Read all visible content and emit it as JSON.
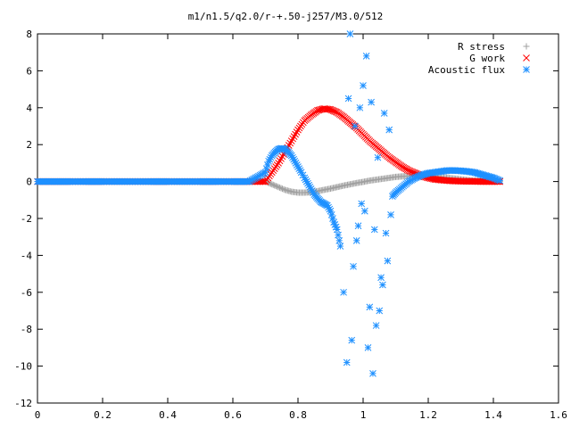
{
  "chart_data": {
    "type": "scatter",
    "title": "m1/n1.5/q2.0/r-+.50-j257/M3.0/512",
    "xlabel": "",
    "ylabel": "",
    "xlim": [
      0,
      1.6
    ],
    "ylim": [
      -12,
      8
    ],
    "xticks": [
      "0",
      "0.2",
      "0.4",
      "0.6",
      "0.8",
      "1",
      "1.2",
      "1.4",
      "1.6"
    ],
    "yticks": [
      "-12",
      "-10",
      "-8",
      "-6",
      "-4",
      "-2",
      "0",
      "2",
      "4",
      "6",
      "8"
    ],
    "grid": false,
    "legend_position": "top-right",
    "series": [
      {
        "name": "R stress",
        "marker": "plus",
        "color": "#a0a0a0",
        "x": [
          0.0,
          0.05,
          0.1,
          0.15,
          0.2,
          0.25,
          0.3,
          0.35,
          0.4,
          0.45,
          0.5,
          0.55,
          0.6,
          0.65,
          0.7,
          0.72,
          0.74,
          0.76,
          0.78,
          0.8,
          0.82,
          0.84,
          0.86,
          0.88,
          0.9,
          0.92,
          0.94,
          0.96,
          0.98,
          1.0,
          1.02,
          1.04,
          1.06,
          1.08,
          1.1,
          1.12,
          1.14,
          1.16,
          1.18,
          1.2,
          1.22,
          1.24,
          1.26,
          1.28,
          1.3,
          1.32,
          1.34,
          1.36,
          1.38,
          1.4,
          1.42
        ],
        "y": [
          0,
          0,
          0,
          0,
          0,
          0,
          0,
          0,
          0,
          0,
          0,
          0,
          0,
          0,
          0,
          -0.15,
          -0.3,
          -0.45,
          -0.55,
          -0.6,
          -0.6,
          -0.58,
          -0.52,
          -0.45,
          -0.38,
          -0.3,
          -0.22,
          -0.15,
          -0.08,
          -0.02,
          0.05,
          0.1,
          0.15,
          0.2,
          0.25,
          0.28,
          0.3,
          0.32,
          0.32,
          0.31,
          0.28,
          0.25,
          0.2,
          0.16,
          0.12,
          0.08,
          0.05,
          0.03,
          0.02,
          0.01,
          0.0
        ]
      },
      {
        "name": "G work",
        "marker": "cross",
        "color": "#ff0000",
        "x": [
          0.0,
          0.05,
          0.1,
          0.15,
          0.2,
          0.25,
          0.3,
          0.35,
          0.4,
          0.45,
          0.5,
          0.55,
          0.6,
          0.65,
          0.7,
          0.72,
          0.74,
          0.76,
          0.78,
          0.8,
          0.82,
          0.84,
          0.86,
          0.88,
          0.9,
          0.92,
          0.94,
          0.96,
          0.98,
          1.0,
          1.02,
          1.04,
          1.06,
          1.08,
          1.1,
          1.12,
          1.14,
          1.16,
          1.18,
          1.2,
          1.22,
          1.24,
          1.26,
          1.28,
          1.3,
          1.32,
          1.34,
          1.36,
          1.38,
          1.4,
          1.42
        ],
        "y": [
          0,
          0,
          0,
          0,
          0,
          0,
          0,
          0,
          0,
          0,
          0,
          0,
          0,
          0,
          0,
          0.5,
          1.0,
          1.6,
          2.2,
          2.8,
          3.3,
          3.6,
          3.85,
          3.95,
          3.9,
          3.75,
          3.5,
          3.2,
          2.9,
          2.55,
          2.2,
          1.9,
          1.6,
          1.3,
          1.05,
          0.8,
          0.6,
          0.45,
          0.3,
          0.2,
          0.12,
          0.08,
          0.05,
          0.03,
          0.02,
          0.01,
          0.01,
          0.0,
          0.0,
          0.0,
          0.0
        ]
      },
      {
        "name": "Acoustic flux",
        "marker": "star",
        "color": "#1e90ff",
        "x": [
          0.0,
          0.05,
          0.1,
          0.15,
          0.2,
          0.25,
          0.3,
          0.35,
          0.4,
          0.45,
          0.5,
          0.55,
          0.6,
          0.65,
          0.7,
          0.71,
          0.72,
          0.73,
          0.74,
          0.75,
          0.76,
          0.77,
          0.78,
          0.79,
          0.8,
          0.81,
          0.82,
          0.83,
          0.84,
          0.85,
          0.86,
          0.87,
          0.88,
          0.89,
          0.9,
          0.91,
          0.92,
          0.93,
          0.94,
          0.95,
          0.955,
          0.96,
          0.965,
          0.97,
          0.975,
          0.98,
          0.985,
          0.99,
          0.995,
          1.0,
          1.005,
          1.01,
          1.015,
          1.02,
          1.025,
          1.03,
          1.035,
          1.04,
          1.045,
          1.05,
          1.055,
          1.06,
          1.065,
          1.07,
          1.075,
          1.08,
          1.085,
          1.09,
          1.1,
          1.12,
          1.14,
          1.16,
          1.18,
          1.2,
          1.22,
          1.24,
          1.26,
          1.28,
          1.3,
          1.32,
          1.34,
          1.36,
          1.38,
          1.4,
          1.42
        ],
        "y": [
          0,
          0,
          0,
          0,
          0,
          0,
          0,
          0,
          0,
          0,
          0,
          0,
          0,
          0,
          0.5,
          1.1,
          1.4,
          1.6,
          1.75,
          1.8,
          1.75,
          1.6,
          1.4,
          1.1,
          0.8,
          0.5,
          0.2,
          -0.1,
          -0.4,
          -0.7,
          -0.9,
          -1.1,
          -1.2,
          -1.3,
          -1.6,
          -2.2,
          -2.6,
          -3.5,
          -6.0,
          -9.8,
          4.5,
          8.0,
          -8.6,
          -4.6,
          3.0,
          -3.2,
          -2.4,
          4.0,
          -1.2,
          5.2,
          -1.6,
          6.8,
          -9.0,
          -6.8,
          4.3,
          -10.4,
          -2.6,
          -7.8,
          1.3,
          -7.0,
          -5.2,
          -5.6,
          3.7,
          -2.8,
          -4.3,
          2.8,
          -1.8,
          -0.8,
          -0.6,
          -0.3,
          0.0,
          0.2,
          0.35,
          0.45,
          0.5,
          0.55,
          0.6,
          0.6,
          0.58,
          0.55,
          0.5,
          0.4,
          0.3,
          0.2,
          0.05
        ]
      }
    ]
  }
}
